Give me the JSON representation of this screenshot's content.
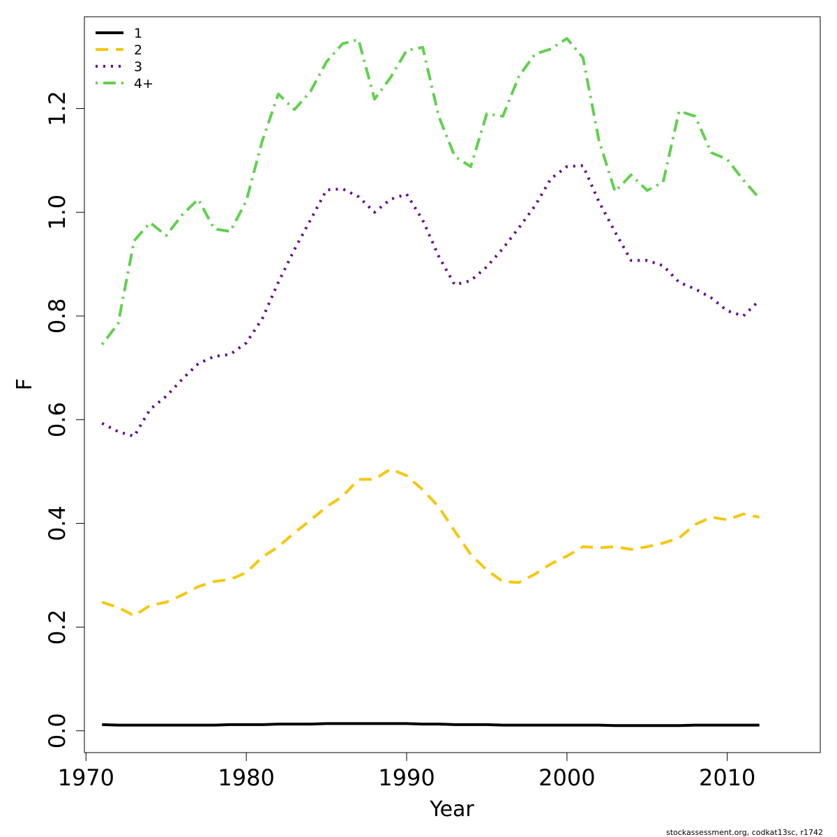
{
  "chart_data": {
    "type": "line",
    "title": "",
    "xlabel": "Year",
    "ylabel": "F",
    "xlim": [
      1969.9,
      2015.8
    ],
    "ylim": [
      -0.042,
      1.377
    ],
    "xticks": [
      1970,
      1980,
      1990,
      2000,
      2010
    ],
    "xtick_labels": [
      "1970",
      "1980",
      "1990",
      "2000",
      "2010"
    ],
    "yticks": [
      0.0,
      0.2,
      0.4,
      0.6,
      0.8,
      1.0,
      1.2
    ],
    "ytick_labels": [
      "0.0",
      "0.2",
      "0.4",
      "0.6",
      "0.8",
      "1.0",
      "1.2"
    ],
    "grid": false,
    "legend_position": "top-left",
    "x": [
      1971,
      1972,
      1973,
      1974,
      1975,
      1976,
      1977,
      1978,
      1979,
      1980,
      1981,
      1982,
      1983,
      1984,
      1985,
      1986,
      1987,
      1988,
      1989,
      1990,
      1991,
      1992,
      1993,
      1994,
      1995,
      1996,
      1997,
      1998,
      1999,
      2000,
      2001,
      2002,
      2003,
      2004,
      2005,
      2006,
      2007,
      2008,
      2009,
      2010,
      2011,
      2012
    ],
    "series": [
      {
        "name": "1",
        "color": "#000000",
        "dash": "solid",
        "values": [
          0.012,
          0.011,
          0.011,
          0.011,
          0.011,
          0.011,
          0.011,
          0.011,
          0.012,
          0.012,
          0.012,
          0.013,
          0.013,
          0.013,
          0.014,
          0.014,
          0.014,
          0.014,
          0.014,
          0.014,
          0.013,
          0.013,
          0.012,
          0.012,
          0.012,
          0.011,
          0.011,
          0.011,
          0.011,
          0.011,
          0.011,
          0.011,
          0.01,
          0.01,
          0.01,
          0.01,
          0.01,
          0.011,
          0.011,
          0.011,
          0.011,
          0.011
        ]
      },
      {
        "name": "2",
        "color": "#f5c710",
        "dash": "dashed",
        "values": [
          0.248,
          0.238,
          0.222,
          0.242,
          0.248,
          0.262,
          0.278,
          0.288,
          0.292,
          0.305,
          0.335,
          0.355,
          0.382,
          0.406,
          0.432,
          0.452,
          0.485,
          0.485,
          0.505,
          0.492,
          0.465,
          0.432,
          0.385,
          0.34,
          0.31,
          0.288,
          0.286,
          0.302,
          0.322,
          0.337,
          0.355,
          0.353,
          0.355,
          0.35,
          0.355,
          0.362,
          0.372,
          0.398,
          0.412,
          0.407,
          0.418,
          0.412
        ]
      },
      {
        "name": "3",
        "color": "#61008c",
        "dash": "dotted",
        "values": [
          0.593,
          0.577,
          0.568,
          0.62,
          0.645,
          0.678,
          0.708,
          0.722,
          0.726,
          0.748,
          0.795,
          0.865,
          0.928,
          0.985,
          1.043,
          1.045,
          1.03,
          1.0,
          1.025,
          1.035,
          0.985,
          0.915,
          0.86,
          0.868,
          0.895,
          0.93,
          0.97,
          1.012,
          1.065,
          1.088,
          1.09,
          1.02,
          0.962,
          0.907,
          0.907,
          0.897,
          0.865,
          0.852,
          0.835,
          0.81,
          0.8,
          0.83
        ]
      },
      {
        "name": "4+",
        "color": "#61d04f",
        "dash": "dotdash",
        "values": [
          0.745,
          0.785,
          0.945,
          0.98,
          0.955,
          0.995,
          1.025,
          0.968,
          0.963,
          1.022,
          1.138,
          1.228,
          1.198,
          1.233,
          1.29,
          1.325,
          1.333,
          1.218,
          1.26,
          1.312,
          1.318,
          1.185,
          1.108,
          1.088,
          1.19,
          1.185,
          1.262,
          1.305,
          1.315,
          1.335,
          1.298,
          1.138,
          1.04,
          1.072,
          1.042,
          1.058,
          1.195,
          1.185,
          1.115,
          1.102,
          1.062,
          1.027
        ]
      }
    ]
  },
  "footer": {
    "credit": "stockassessment.org, codkat13sc, r1742"
  }
}
